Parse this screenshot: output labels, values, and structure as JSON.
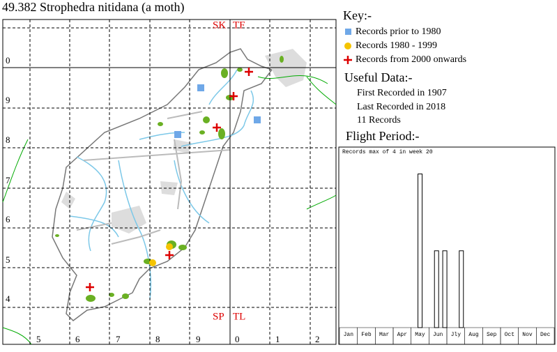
{
  "title": "49.382 Strophedra nitidana (a moth)",
  "map": {
    "grid_squares": [
      "SK",
      "TF",
      "SP",
      "TL"
    ],
    "northings": [
      "0",
      "9",
      "8",
      "7",
      "6",
      "5",
      "4"
    ],
    "eastings": [
      "5",
      "6",
      "7",
      "8",
      "9",
      "0",
      "1",
      "2"
    ]
  },
  "key": {
    "title": "Key:-",
    "entries": [
      "Records prior to 1980",
      "Records 1980 - 1999",
      "Records from 2000 onwards"
    ]
  },
  "useful_data": {
    "title": "Useful Data:-",
    "lines": [
      "First Recorded in 1907",
      "Last Recorded in 2018",
      "11 Records"
    ]
  },
  "chart_data": {
    "type": "bar",
    "title": "Flight Period:-",
    "note": "Records max of 4 in week 20",
    "categories": [
      "Jan",
      "Feb",
      "Mar",
      "Apr",
      "May",
      "Jun",
      "Jly",
      "Aug",
      "Sep",
      "Oct",
      "Nov",
      "Dec"
    ],
    "x": [
      20,
      24,
      26,
      30
    ],
    "values": [
      4,
      2,
      2,
      2
    ],
    "xlim": [
      0,
      52
    ],
    "ylim": [
      0,
      4.7
    ]
  }
}
